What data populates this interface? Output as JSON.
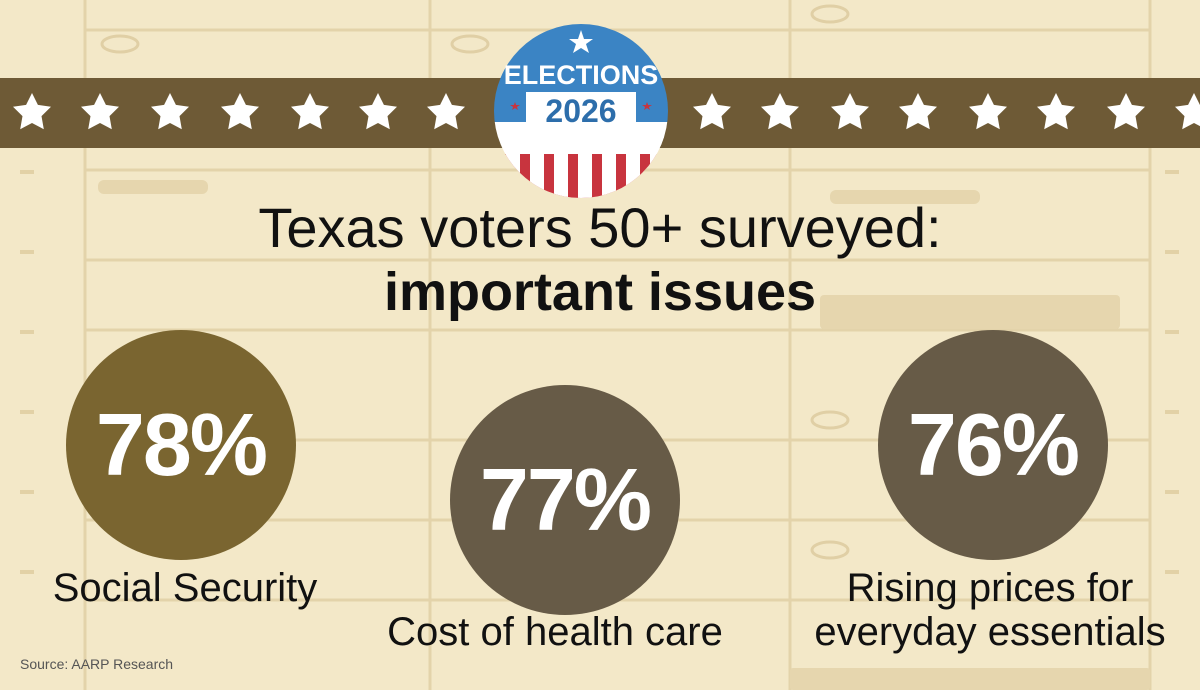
{
  "badge": {
    "top_text": "ELECTIONS",
    "year": "2026"
  },
  "headline": {
    "line1": "Texas voters 50+ surveyed:",
    "line2": "important issues"
  },
  "chart_data": {
    "type": "bar",
    "title": "Texas voters 50+ surveyed: important issues",
    "categories": [
      "Social Security",
      "Cost of health care",
      "Rising prices for everyday essentials"
    ],
    "values": [
      78,
      77,
      76
    ],
    "value_labels": [
      "78%",
      "77%",
      "76%"
    ],
    "unit": "%"
  },
  "items": [
    {
      "percent": "78%",
      "label": "Social Security",
      "label_lines": [
        "Social Security"
      ]
    },
    {
      "percent": "77%",
      "label": "Cost of health care",
      "label_lines": [
        "Cost of health care"
      ]
    },
    {
      "percent": "76%",
      "label": "Rising prices for everyday essentials",
      "label_lines": [
        "Rising prices for",
        "everyday essentials"
      ]
    }
  ],
  "source": "Source: AARP Research",
  "colors": {
    "background": "#f3e8c8",
    "banner": "#6e5a36",
    "circle_1": "#7a6530",
    "circle_2": "#675b47",
    "circle_3": "#675b47",
    "badge_blue": "#3b84c4",
    "badge_red": "#c8343e",
    "star": "#ffffff"
  },
  "icons": [
    "star-icon",
    "elections-badge"
  ]
}
